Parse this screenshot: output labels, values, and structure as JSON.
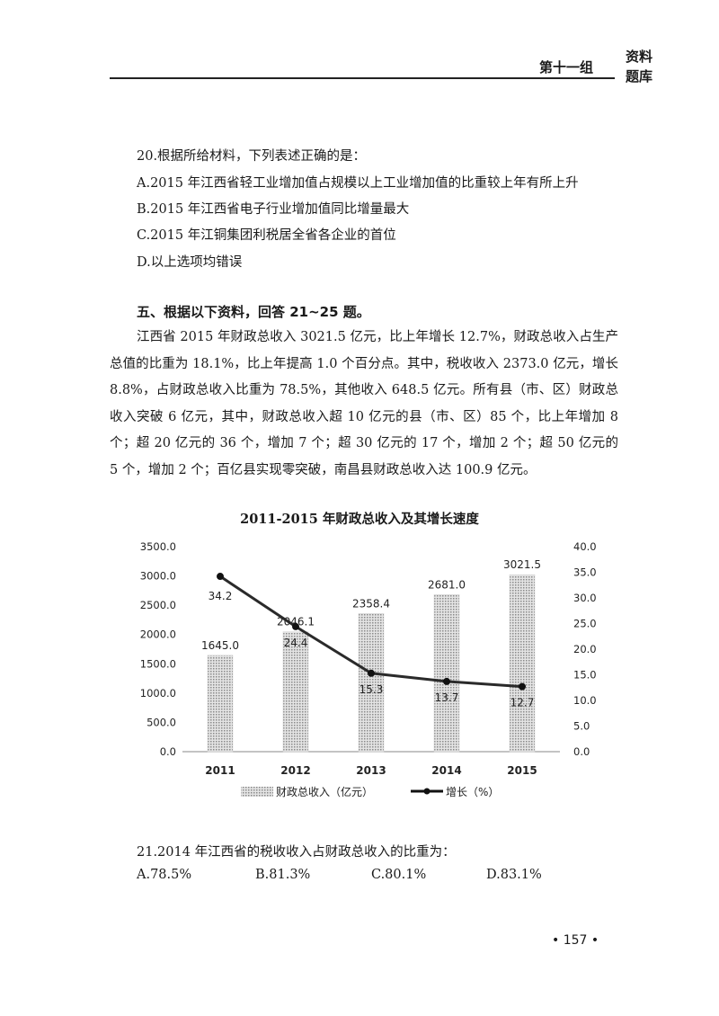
{
  "header": {
    "text": "第十一组",
    "logo_line1": "资料",
    "logo_line2": "题库"
  },
  "q20": {
    "stem": "20.根据所给材料，下列表述正确的是：",
    "options": [
      "A.2015 年江西省轻工业增加值占规模以上工业增加值的比重较上年有所上升",
      "B.2015 年江西省电子行业增加值同比增量最大",
      "C.2015 年江铜集团利税居全省各企业的首位",
      "D.以上选项均错误"
    ]
  },
  "section": {
    "title": "五、根据以下资料，回答 21~25 题。",
    "paragraph": "江西省 2015 年财政总收入 3021.5 亿元，比上年增长 12.7%，财政总收入占生产总值的比重为 18.1%，比上年提高 1.0 个百分点。其中，税收收入 2373.0 亿元，增长 8.8%，占财政总收入比重为 78.5%，其他收入 648.5 亿元。所有县（市、区）财政总收入突破 6 亿元，其中，财政总收入超 10 亿元的县（市、区）85 个，比上年增加 8 个；超 20 亿元的 36 个，增加 7 个；超 30 亿元的 17 个，增加 2 个；超 50 亿元的 5 个，增加 2 个；百亿县实现零突破，南昌县财政总收入达 100.9 亿元。"
  },
  "chart_data": {
    "type": "bar",
    "title": "2011-2015 年财政总收入及其增长速度",
    "categories": [
      "2011",
      "2012",
      "2013",
      "2014",
      "2015"
    ],
    "series": [
      {
        "name": "财政总收入（亿元）",
        "type": "bar",
        "axis": "left",
        "values": [
          1645.0,
          2046.1,
          2358.4,
          2681.0,
          3021.5
        ],
        "labels": [
          "1645.0",
          "2046.1",
          "2358.4",
          "2681.0",
          "3021.5"
        ]
      },
      {
        "name": "增长（%）",
        "type": "line",
        "axis": "right",
        "values": [
          34.2,
          24.4,
          15.3,
          13.7,
          12.7
        ],
        "labels": [
          "34.2",
          "24.4",
          "15.3",
          "13.7",
          "12.7"
        ]
      }
    ],
    "ylim_left": [
      0,
      3500
    ],
    "ylim_right": [
      0,
      40
    ],
    "left_ticks": [
      "0.0",
      "500.0",
      "1000.0",
      "1500.0",
      "2000.0",
      "2500.0",
      "3000.0",
      "3500.0"
    ],
    "right_ticks": [
      "0.0",
      "5.0",
      "10.0",
      "15.0",
      "20.0",
      "25.0",
      "30.0",
      "35.0",
      "40.0"
    ],
    "legend_position": "bottom",
    "grid": false,
    "colors": {
      "bar": "#b8b8b8",
      "line": "#2a2a2a"
    }
  },
  "q21": {
    "stem": "21.2014 年江西省的税收收入占财政总收入的比重为：",
    "options": [
      "A.78.5%",
      "B.81.3%",
      "C.80.1%",
      "D.83.1%"
    ]
  },
  "page_number": "• 157 •"
}
